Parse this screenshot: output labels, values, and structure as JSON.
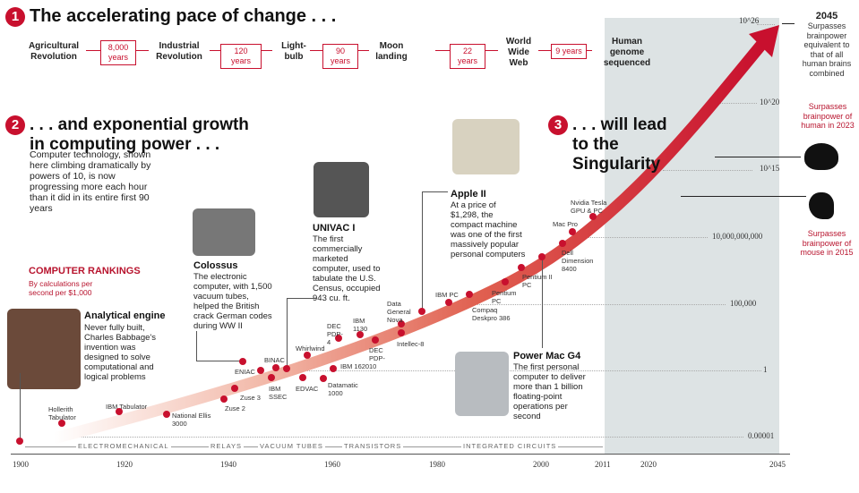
{
  "section1": {
    "number": "1",
    "title": "The accelerating pace of change . . .",
    "events": [
      "Agricultural Revolution",
      "Industrial Revolution",
      "Light-bulb",
      "Moon landing",
      "World Wide Web",
      "Human genome sequenced"
    ],
    "gaps": [
      "8,000 years",
      "120 years",
      "90 years",
      "22 years",
      "9 years"
    ]
  },
  "section2": {
    "number": "2",
    "title_line1": ". . . and exponential growth",
    "title_line2": "in computing power . . .",
    "body": "Computer technology, shown here climbing dramatically by powers of 10, is now progressing more each hour than it did in its entire first 90 years"
  },
  "section3": {
    "number": "3",
    "title_line1": ". . . will lead",
    "title_line2": "to the",
    "title_line3": "Singularity"
  },
  "rankings": {
    "title": "COMPUTER RANKINGS",
    "subtitle": "By calculations per second per $1,000"
  },
  "callouts": {
    "analytical": {
      "title": "Analytical engine",
      "body": "Never fully built, Charles Babbage's invention was designed to solve computational and logical problems"
    },
    "colossus": {
      "title": "Colossus",
      "body": "The electronic computer, with 1,500 vacuum tubes, helped the British crack German codes during WW II"
    },
    "univac": {
      "title": "UNIVAC I",
      "body": "The first commercially marketed computer, used to tabulate the U.S. Census, occupied 943 cu. ft."
    },
    "apple": {
      "title": "Apple II",
      "body": "At a price of $1,298, the compact machine was one of the first massively popular personal computers"
    },
    "powermac": {
      "title": "Power Mac G4",
      "body": "The first personal computer to deliver more than 1 billion floating-point operations per second"
    }
  },
  "milestones": {
    "y2045": {
      "year": "2045",
      "text": "Surpasses brainpower equivalent to that of all human brains combined"
    },
    "human": {
      "text": "Surpasses brainpower of human in 2023",
      "icon": "brain-icon"
    },
    "mouse": {
      "text": "Surpasses brainpower of mouse in 2015",
      "icon": "mouse-icon"
    }
  },
  "points": [
    "Hollerith Tabulator",
    "IBM Tabulator",
    "National Ellis 3000",
    "Zuse 2",
    "Zuse 3",
    "ENIAC",
    "BINAC",
    "IBM SSEC",
    "EDVAC",
    "Whirlwind",
    "Datamatic 1000",
    "IBM 1620",
    "DEC PDP-4",
    "IBM 1130",
    "DEC PDP-10",
    "Data General Nova",
    "Intellec-8",
    "IBM PC",
    "Compaq Deskpro 386",
    "Pentium PC",
    "Pentium II PC",
    "Dell Dimension 8400",
    "Mac Pro",
    "Nvidia Tesla GPU & PC"
  ],
  "y_ticks": [
    "0.00001",
    "1",
    "100,000",
    "10,000,000,000",
    "10^15",
    "10^20",
    "10^26"
  ],
  "x_ticks": [
    "1900",
    "1920",
    "1940",
    "1960",
    "1980",
    "2000",
    "2011",
    "2020",
    "2045"
  ],
  "eras": [
    "ELECTROMECHANICAL",
    "RELAYS",
    "VACUUM TUBES",
    "TRANSISTORS",
    "INTEGRATED CIRCUITS"
  ],
  "colors": {
    "accent": "#c8102e",
    "band": "#dde3e4"
  }
}
